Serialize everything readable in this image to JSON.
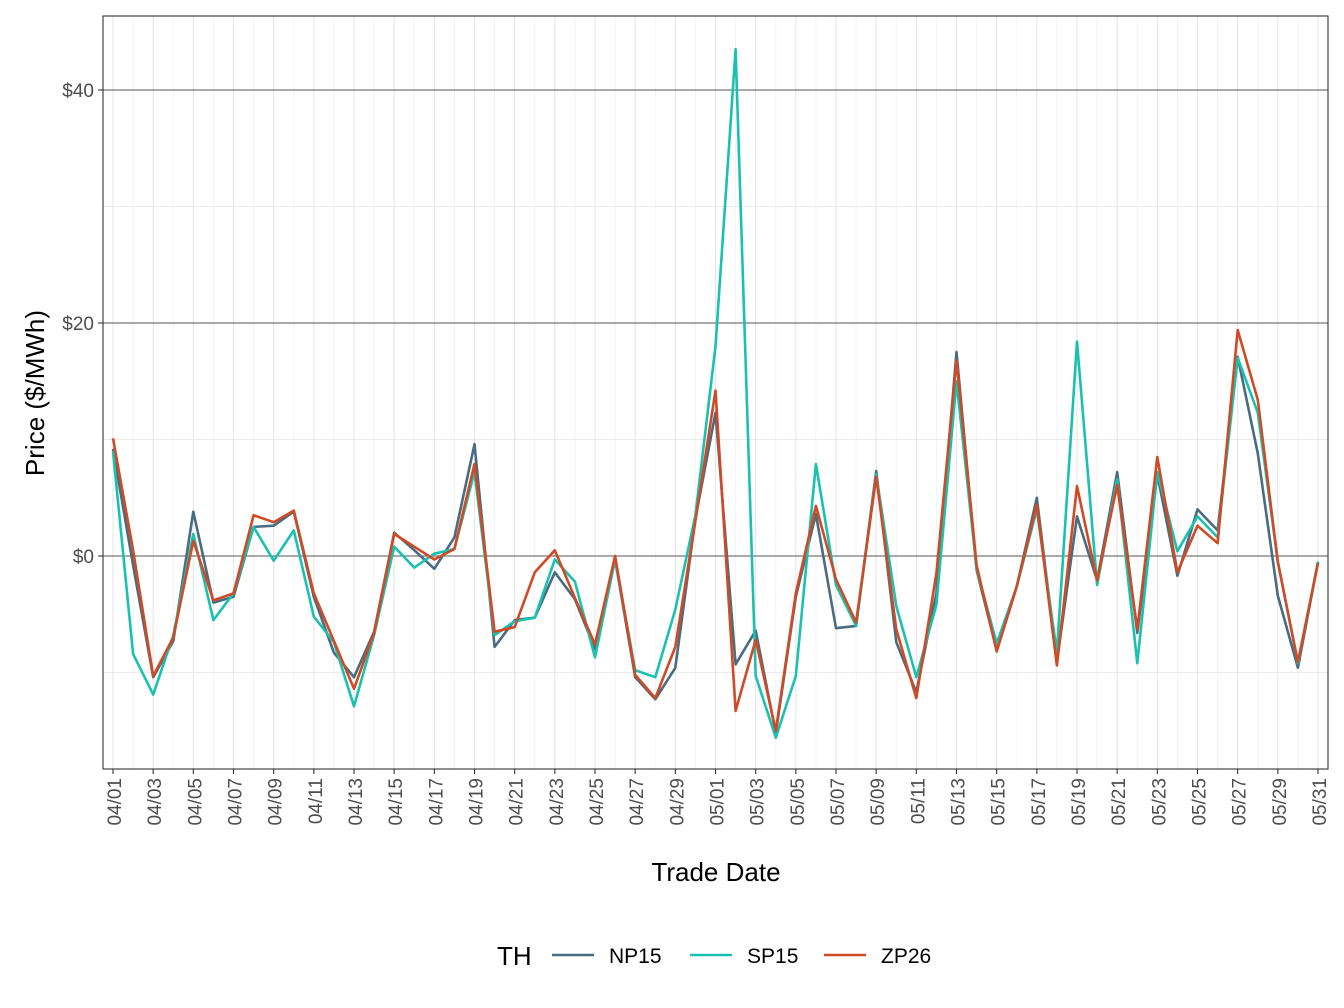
{
  "chart_data": {
    "type": "line",
    "xlabel": "Trade Date",
    "ylabel": "Price ($/MWh)",
    "ylim": [
      -18,
      46
    ],
    "y_ticks": [
      0,
      20,
      40
    ],
    "y_tick_labels": [
      "$0",
      "$20",
      "$40"
    ],
    "x_tick_labels": [
      "04/01",
      "04/03",
      "04/05",
      "04/07",
      "04/09",
      "04/11",
      "04/13",
      "04/15",
      "04/17",
      "04/19",
      "04/21",
      "04/23",
      "04/25",
      "04/27",
      "04/29",
      "05/01",
      "05/03",
      "05/05",
      "05/07",
      "05/09",
      "05/11",
      "05/13",
      "05/15",
      "05/17",
      "05/19",
      "05/21",
      "05/23",
      "05/25",
      "05/27",
      "05/29",
      "05/31"
    ],
    "grid": true,
    "legend": {
      "title": "TH",
      "position": "bottom"
    },
    "x": [
      "04/01",
      "04/02",
      "04/03",
      "04/04",
      "04/05",
      "04/06",
      "04/07",
      "04/08",
      "04/09",
      "04/10",
      "04/11",
      "04/12",
      "04/13",
      "04/14",
      "04/15",
      "04/16",
      "04/17",
      "04/18",
      "04/19",
      "04/20",
      "04/21",
      "04/22",
      "04/23",
      "04/24",
      "04/25",
      "04/26",
      "04/27",
      "04/28",
      "04/29",
      "04/30",
      "05/01",
      "05/02",
      "05/03",
      "05/04",
      "05/05",
      "05/06",
      "05/07",
      "05/08",
      "05/09",
      "05/10",
      "05/11",
      "05/12",
      "05/13",
      "05/14",
      "05/15",
      "05/16",
      "05/17",
      "05/18",
      "05/19",
      "05/20",
      "05/21",
      "05/22",
      "05/23",
      "05/24",
      "05/25",
      "05/26",
      "05/27",
      "05/28",
      "05/29",
      "05/30",
      "05/31"
    ],
    "series": [
      {
        "name": "NP15",
        "color": "#4a6b80",
        "values": [
          9.2,
          -0.8,
          -10.4,
          -7.3,
          3.8,
          -4.0,
          -3.5,
          2.5,
          2.6,
          3.8,
          -3.5,
          -8.3,
          -10.4,
          -6.5,
          2.0,
          0.5,
          -1.1,
          1.6,
          9.6,
          -7.8,
          -5.5,
          -5.3,
          -1.4,
          -3.7,
          -8.0,
          -0.3,
          -10.4,
          -12.3,
          -9.6,
          3.2,
          12.3,
          -9.3,
          -6.4,
          -15.2,
          -3.5,
          3.6,
          -6.2,
          -6.0,
          7.3,
          -7.4,
          -11.7,
          -3.2,
          17.5,
          -1.2,
          -8.1,
          -2.6,
          5.0,
          -9.1,
          3.4,
          -2.1,
          7.2,
          -6.6,
          7.0,
          -1.7,
          4.0,
          2.2,
          17.1,
          8.8,
          -3.4,
          -9.6,
          -0.5
        ]
      },
      {
        "name": "SP15",
        "color": "#1bc1b0",
        "values": [
          9.0,
          -8.4,
          -11.9,
          -6.8,
          1.9,
          -5.5,
          -3.2,
          2.5,
          -0.4,
          2.2,
          -5.2,
          -7.4,
          -12.9,
          -6.8,
          0.8,
          -1.0,
          0.2,
          0.6,
          7.2,
          -6.8,
          -5.6,
          -5.3,
          -0.3,
          -2.2,
          -8.7,
          -0.3,
          -9.8,
          -10.4,
          -4.6,
          3.5,
          18.0,
          43.5,
          -10.3,
          -15.6,
          -10.3,
          7.9,
          -2.5,
          -6.0,
          7.0,
          -4.3,
          -10.4,
          -4.2,
          15.0,
          -1.1,
          -7.5,
          -2.6,
          4.0,
          -8.3,
          18.4,
          -2.5,
          6.6,
          -9.2,
          7.2,
          0.4,
          3.4,
          1.6,
          17.0,
          12.3,
          -0.5,
          -9.2,
          -0.5
        ]
      },
      {
        "name": "ZP26",
        "color": "#d14a26",
        "values": [
          10.1,
          0.5,
          -10.3,
          -7.0,
          1.3,
          -3.8,
          -3.2,
          3.5,
          2.9,
          3.9,
          -3.2,
          -7.3,
          -11.4,
          -6.6,
          1.9,
          0.8,
          -0.3,
          0.6,
          7.9,
          -6.5,
          -6.1,
          -1.4,
          0.5,
          -3.6,
          -7.6,
          0.0,
          -10.2,
          -12.2,
          -7.8,
          3.0,
          14.2,
          -13.3,
          -7.2,
          -15.0,
          -3.2,
          4.3,
          -2.0,
          -5.7,
          6.8,
          -6.3,
          -12.2,
          -1.5,
          16.8,
          -0.8,
          -8.2,
          -2.6,
          4.4,
          -9.4,
          6.0,
          -2.1,
          6.1,
          -6.3,
          8.5,
          -1.4,
          2.6,
          1.1,
          19.4,
          13.4,
          -0.5,
          -9.1,
          -0.6
        ]
      }
    ]
  }
}
